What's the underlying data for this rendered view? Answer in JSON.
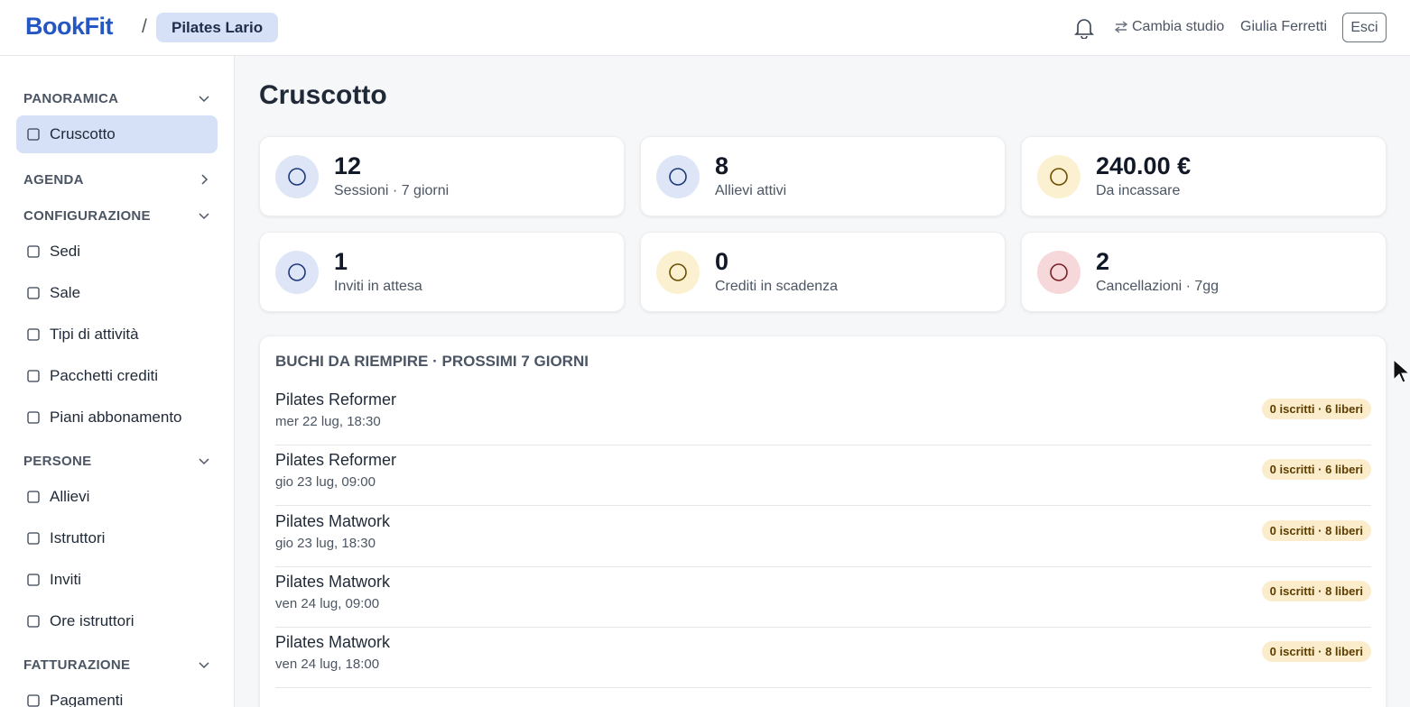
{
  "header": {
    "logo": "BookFit",
    "separator": "/",
    "studio": "Pilates Lario",
    "switch": "Cambia studio",
    "user": "Giulia Ferretti",
    "logout": "Esci"
  },
  "sidebar": {
    "sections": [
      {
        "title": "PANORAMICA",
        "items": [
          "Cruscotto"
        ]
      },
      {
        "title": "AGENDA",
        "items": []
      },
      {
        "title": "CONFIGURAZIONE",
        "items": [
          "Sedi",
          "Sale",
          "Tipi di attività",
          "Pacchetti crediti",
          "Piani abbonamento"
        ]
      },
      {
        "title": "PERSONE",
        "items": [
          "Allievi",
          "Istruttori",
          "Inviti",
          "Ore istruttori"
        ]
      },
      {
        "title": "FATTURAZIONE",
        "items": [
          "Pagamenti"
        ]
      }
    ]
  },
  "page": {
    "title": "Cruscotto"
  },
  "stats": [
    {
      "value": "12",
      "label": "Sessioni · 7 giorni"
    },
    {
      "value": "8",
      "label": "Allievi attivi"
    },
    {
      "value": "240.00 €",
      "label": "Da incassare"
    },
    {
      "value": "1",
      "label": "Inviti in attesa"
    },
    {
      "value": "0",
      "label": "Crediti in scadenza"
    },
    {
      "value": "2",
      "label": "Cancellazioni · 7gg"
    }
  ],
  "gaps": {
    "title": "BUCHI DA RIEMPIRE · PROSSIMI 7 GIORNI",
    "rows": [
      {
        "name": "Pilates Reformer",
        "when": "mer 22 lug, 18:30",
        "badge": "0 iscritti · 6 liberi"
      },
      {
        "name": "Pilates Reformer",
        "when": "gio 23 lug, 09:00",
        "badge": "0 iscritti · 6 liberi"
      },
      {
        "name": "Pilates Matwork",
        "when": "gio 23 lug, 18:30",
        "badge": "0 iscritti · 8 liberi"
      },
      {
        "name": "Pilates Matwork",
        "when": "ven 24 lug, 09:00",
        "badge": "0 iscritti · 8 liberi"
      },
      {
        "name": "Pilates Matwork",
        "when": "ven 24 lug, 18:00",
        "badge": "0 iscritti · 8 liberi"
      }
    ]
  }
}
